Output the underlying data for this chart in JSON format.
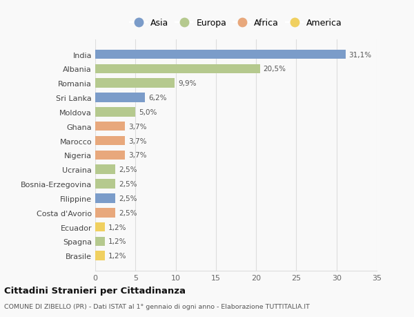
{
  "countries": [
    "India",
    "Albania",
    "Romania",
    "Sri Lanka",
    "Moldova",
    "Ghana",
    "Marocco",
    "Nigeria",
    "Ucraina",
    "Bosnia-Erzegovina",
    "Filippine",
    "Costa d'Avorio",
    "Ecuador",
    "Spagna",
    "Brasile"
  ],
  "values": [
    31.1,
    20.5,
    9.9,
    6.2,
    5.0,
    3.7,
    3.7,
    3.7,
    2.5,
    2.5,
    2.5,
    2.5,
    1.2,
    1.2,
    1.2
  ],
  "labels": [
    "31,1%",
    "20,5%",
    "9,9%",
    "6,2%",
    "5,0%",
    "3,7%",
    "3,7%",
    "3,7%",
    "2,5%",
    "2,5%",
    "2,5%",
    "2,5%",
    "1,2%",
    "1,2%",
    "1,2%"
  ],
  "continent": [
    "Asia",
    "Europa",
    "Europa",
    "Asia",
    "Europa",
    "Africa",
    "Africa",
    "Africa",
    "Europa",
    "Europa",
    "Asia",
    "Africa",
    "America",
    "Europa",
    "America"
  ],
  "colors": {
    "Asia": "#7b9cc9",
    "Europa": "#b5c98e",
    "Africa": "#e8a87c",
    "America": "#f0d060"
  },
  "legend_order": [
    "Asia",
    "Europa",
    "Africa",
    "America"
  ],
  "title": "Cittadini Stranieri per Cittadinanza",
  "subtitle": "COMUNE DI ZIBELLO (PR) - Dati ISTAT al 1° gennaio di ogni anno - Elaborazione TUTTITALIA.IT",
  "xlim": [
    0,
    35
  ],
  "xticks": [
    0,
    5,
    10,
    15,
    20,
    25,
    30,
    35
  ],
  "background_color": "#f9f9f9",
  "grid_color": "#dddddd"
}
